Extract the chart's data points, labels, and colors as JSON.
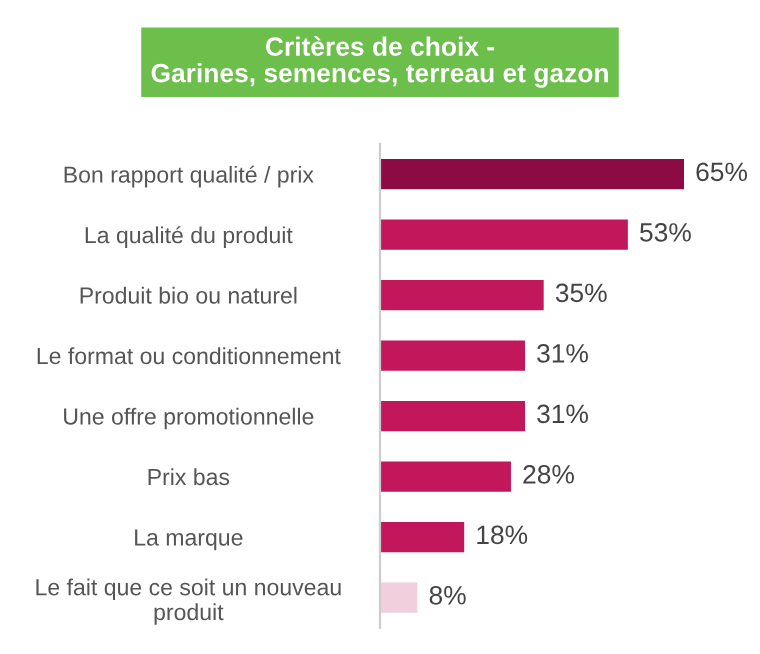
{
  "chart_data": {
    "type": "bar",
    "orientation": "horizontal",
    "title": "Critères de choix -\nGarines, semences, terreau et gazon",
    "categories": [
      "Bon rapport qualité / prix",
      "La qualité du produit",
      "Produit bio ou naturel",
      "Le format ou conditionnement",
      "Une offre promotionnelle",
      "Prix bas",
      "La marque",
      "Le fait que ce soit un nouveau\nproduit"
    ],
    "values": [
      65,
      53,
      35,
      31,
      31,
      28,
      18,
      8
    ],
    "colors": [
      "#8c0b45",
      "#c2185b",
      "#c2185b",
      "#c2185b",
      "#c2185b",
      "#c2185b",
      "#c2185b",
      "#f2cfdc"
    ],
    "value_labels": [
      "65%",
      "53%",
      "35%",
      "31%",
      "31%",
      "28%",
      "18%",
      "8%"
    ],
    "grid": false,
    "legend": false
  }
}
